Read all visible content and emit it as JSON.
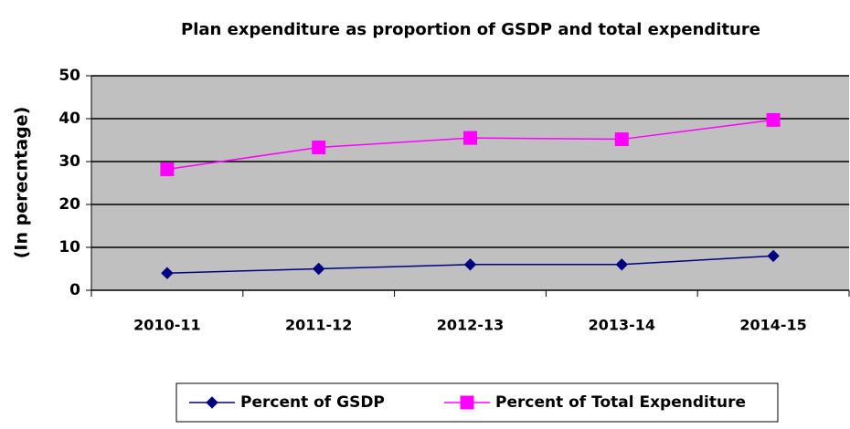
{
  "chart_data": {
    "type": "line",
    "title": "Plan expenditure as proportion of GSDP and total expenditure",
    "y_label": "(In perecntage)",
    "categories": [
      "2010-11",
      "2011-12",
      "2012-13",
      "2013-14",
      "2014-15"
    ],
    "series": [
      {
        "name": "Percent of GSDP",
        "color": "#000080",
        "marker": "diamond",
        "values": [
          4,
          5,
          6,
          6,
          8
        ]
      },
      {
        "name": "Percent of Total Expenditure",
        "color": "#ff00ff",
        "marker": "square",
        "values": [
          28.2,
          33.3,
          35.5,
          35.2,
          39.7
        ]
      }
    ],
    "ylim": [
      0,
      50
    ],
    "yticks": [
      0,
      10,
      20,
      30,
      40,
      50
    ],
    "grid": true,
    "legend": "bottom"
  }
}
